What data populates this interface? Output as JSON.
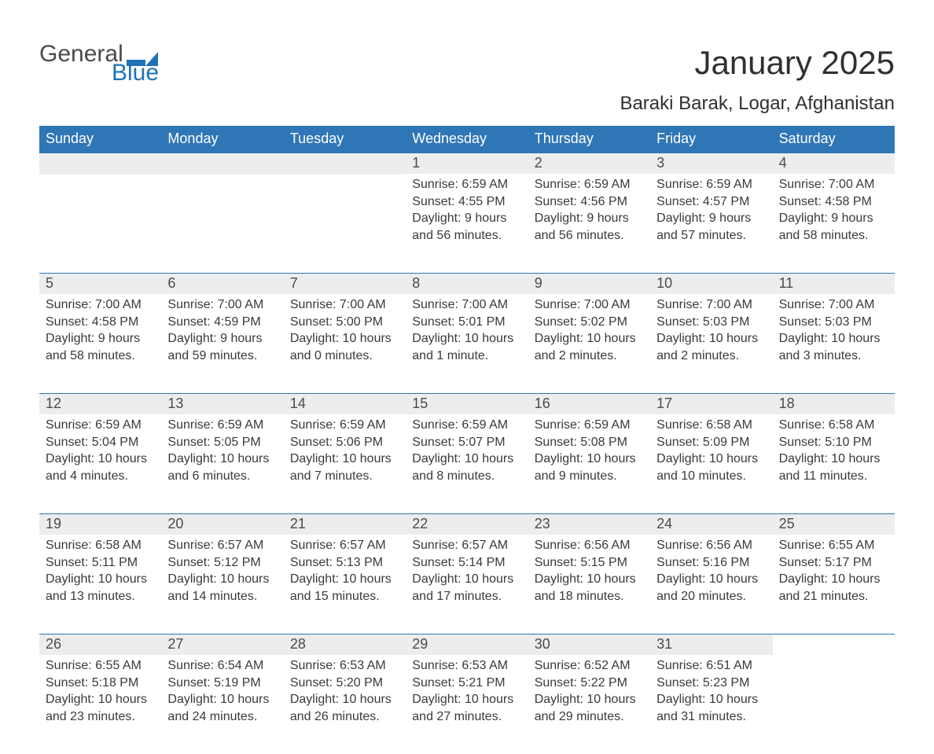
{
  "logo": {
    "line1": "General",
    "line2": "Blue",
    "flag_color": "#1e73b8"
  },
  "page_title": "January 2025",
  "location": "Baraki Barak, Logar, Afghanistan",
  "colors": {
    "header_bg": "#2f76b6",
    "header_text": "#ffffff",
    "row_sep": "#2f76b6",
    "daynum_bg": "#ededed",
    "body_text": "#3a3a3a",
    "logo_text": "#4a4a4a",
    "logo_blue": "#1e73b8",
    "background": "#ffffff"
  },
  "weekdays": [
    "Sunday",
    "Monday",
    "Tuesday",
    "Wednesday",
    "Thursday",
    "Friday",
    "Saturday"
  ],
  "weeks": [
    [
      null,
      null,
      null,
      {
        "day": "1",
        "sunrise": "Sunrise: 6:59 AM",
        "sunset": "Sunset: 4:55 PM",
        "day1": "Daylight: 9 hours",
        "day2": "and 56 minutes."
      },
      {
        "day": "2",
        "sunrise": "Sunrise: 6:59 AM",
        "sunset": "Sunset: 4:56 PM",
        "day1": "Daylight: 9 hours",
        "day2": "and 56 minutes."
      },
      {
        "day": "3",
        "sunrise": "Sunrise: 6:59 AM",
        "sunset": "Sunset: 4:57 PM",
        "day1": "Daylight: 9 hours",
        "day2": "and 57 minutes."
      },
      {
        "day": "4",
        "sunrise": "Sunrise: 7:00 AM",
        "sunset": "Sunset: 4:58 PM",
        "day1": "Daylight: 9 hours",
        "day2": "and 58 minutes."
      }
    ],
    [
      {
        "day": "5",
        "sunrise": "Sunrise: 7:00 AM",
        "sunset": "Sunset: 4:58 PM",
        "day1": "Daylight: 9 hours",
        "day2": "and 58 minutes."
      },
      {
        "day": "6",
        "sunrise": "Sunrise: 7:00 AM",
        "sunset": "Sunset: 4:59 PM",
        "day1": "Daylight: 9 hours",
        "day2": "and 59 minutes."
      },
      {
        "day": "7",
        "sunrise": "Sunrise: 7:00 AM",
        "sunset": "Sunset: 5:00 PM",
        "day1": "Daylight: 10 hours",
        "day2": "and 0 minutes."
      },
      {
        "day": "8",
        "sunrise": "Sunrise: 7:00 AM",
        "sunset": "Sunset: 5:01 PM",
        "day1": "Daylight: 10 hours",
        "day2": "and 1 minute."
      },
      {
        "day": "9",
        "sunrise": "Sunrise: 7:00 AM",
        "sunset": "Sunset: 5:02 PM",
        "day1": "Daylight: 10 hours",
        "day2": "and 2 minutes."
      },
      {
        "day": "10",
        "sunrise": "Sunrise: 7:00 AM",
        "sunset": "Sunset: 5:03 PM",
        "day1": "Daylight: 10 hours",
        "day2": "and 2 minutes."
      },
      {
        "day": "11",
        "sunrise": "Sunrise: 7:00 AM",
        "sunset": "Sunset: 5:03 PM",
        "day1": "Daylight: 10 hours",
        "day2": "and 3 minutes."
      }
    ],
    [
      {
        "day": "12",
        "sunrise": "Sunrise: 6:59 AM",
        "sunset": "Sunset: 5:04 PM",
        "day1": "Daylight: 10 hours",
        "day2": "and 4 minutes."
      },
      {
        "day": "13",
        "sunrise": "Sunrise: 6:59 AM",
        "sunset": "Sunset: 5:05 PM",
        "day1": "Daylight: 10 hours",
        "day2": "and 6 minutes."
      },
      {
        "day": "14",
        "sunrise": "Sunrise: 6:59 AM",
        "sunset": "Sunset: 5:06 PM",
        "day1": "Daylight: 10 hours",
        "day2": "and 7 minutes."
      },
      {
        "day": "15",
        "sunrise": "Sunrise: 6:59 AM",
        "sunset": "Sunset: 5:07 PM",
        "day1": "Daylight: 10 hours",
        "day2": "and 8 minutes."
      },
      {
        "day": "16",
        "sunrise": "Sunrise: 6:59 AM",
        "sunset": "Sunset: 5:08 PM",
        "day1": "Daylight: 10 hours",
        "day2": "and 9 minutes."
      },
      {
        "day": "17",
        "sunrise": "Sunrise: 6:58 AM",
        "sunset": "Sunset: 5:09 PM",
        "day1": "Daylight: 10 hours",
        "day2": "and 10 minutes."
      },
      {
        "day": "18",
        "sunrise": "Sunrise: 6:58 AM",
        "sunset": "Sunset: 5:10 PM",
        "day1": "Daylight: 10 hours",
        "day2": "and 11 minutes."
      }
    ],
    [
      {
        "day": "19",
        "sunrise": "Sunrise: 6:58 AM",
        "sunset": "Sunset: 5:11 PM",
        "day1": "Daylight: 10 hours",
        "day2": "and 13 minutes."
      },
      {
        "day": "20",
        "sunrise": "Sunrise: 6:57 AM",
        "sunset": "Sunset: 5:12 PM",
        "day1": "Daylight: 10 hours",
        "day2": "and 14 minutes."
      },
      {
        "day": "21",
        "sunrise": "Sunrise: 6:57 AM",
        "sunset": "Sunset: 5:13 PM",
        "day1": "Daylight: 10 hours",
        "day2": "and 15 minutes."
      },
      {
        "day": "22",
        "sunrise": "Sunrise: 6:57 AM",
        "sunset": "Sunset: 5:14 PM",
        "day1": "Daylight: 10 hours",
        "day2": "and 17 minutes."
      },
      {
        "day": "23",
        "sunrise": "Sunrise: 6:56 AM",
        "sunset": "Sunset: 5:15 PM",
        "day1": "Daylight: 10 hours",
        "day2": "and 18 minutes."
      },
      {
        "day": "24",
        "sunrise": "Sunrise: 6:56 AM",
        "sunset": "Sunset: 5:16 PM",
        "day1": "Daylight: 10 hours",
        "day2": "and 20 minutes."
      },
      {
        "day": "25",
        "sunrise": "Sunrise: 6:55 AM",
        "sunset": "Sunset: 5:17 PM",
        "day1": "Daylight: 10 hours",
        "day2": "and 21 minutes."
      }
    ],
    [
      {
        "day": "26",
        "sunrise": "Sunrise: 6:55 AM",
        "sunset": "Sunset: 5:18 PM",
        "day1": "Daylight: 10 hours",
        "day2": "and 23 minutes."
      },
      {
        "day": "27",
        "sunrise": "Sunrise: 6:54 AM",
        "sunset": "Sunset: 5:19 PM",
        "day1": "Daylight: 10 hours",
        "day2": "and 24 minutes."
      },
      {
        "day": "28",
        "sunrise": "Sunrise: 6:53 AM",
        "sunset": "Sunset: 5:20 PM",
        "day1": "Daylight: 10 hours",
        "day2": "and 26 minutes."
      },
      {
        "day": "29",
        "sunrise": "Sunrise: 6:53 AM",
        "sunset": "Sunset: 5:21 PM",
        "day1": "Daylight: 10 hours",
        "day2": "and 27 minutes."
      },
      {
        "day": "30",
        "sunrise": "Sunrise: 6:52 AM",
        "sunset": "Sunset: 5:22 PM",
        "day1": "Daylight: 10 hours",
        "day2": "and 29 minutes."
      },
      {
        "day": "31",
        "sunrise": "Sunrise: 6:51 AM",
        "sunset": "Sunset: 5:23 PM",
        "day1": "Daylight: 10 hours",
        "day2": "and 31 minutes."
      },
      null
    ]
  ]
}
